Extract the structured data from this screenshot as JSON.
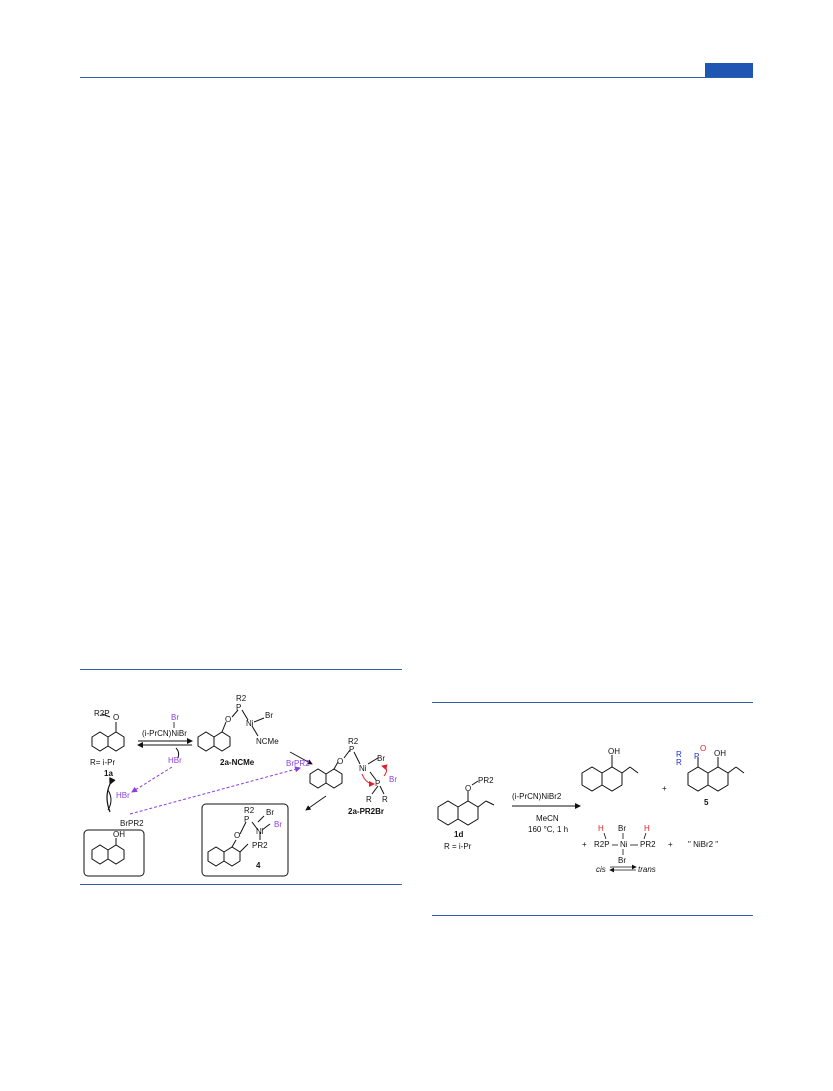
{
  "header": {
    "accent_color": "#1f55b3"
  },
  "scheme_left": {
    "compound_1a": {
      "substituent": "R2P",
      "heteroatom": "O",
      "label": "1a",
      "r_def": "R= i-Pr"
    },
    "reagent": {
      "line1": "Br",
      "line2": "(i-PrCN)NiBr"
    },
    "hbr_top": "HBr",
    "hbr_bottom": "HBr",
    "brpr2_bottom": "BrPR2",
    "brpr2_top": "BrPR2",
    "naphthol": {
      "oh": "OH"
    },
    "complex_2a_ncme": {
      "label": "2a-NCMe",
      "r3": "R2",
      "p": "P",
      "o": "O",
      "ni": "Ni",
      "br": "Br",
      "ncme": "NCMe"
    },
    "complex_2a_pr2br": {
      "label": "2a-PR2Br",
      "r2": "R2",
      "p": "P",
      "o": "O",
      "ni": "Ni",
      "br": "Br",
      "p2": "P",
      "br2": "Br",
      "r_left": "R",
      "r_right": "R"
    },
    "complex_4": {
      "label": "4",
      "r2": "R2",
      "p": "P",
      "o": "O",
      "ni": "Ni",
      "br1": "Br",
      "br2": "Br",
      "pr2": "PR2"
    },
    "colors": {
      "purple": "#8b3fe0",
      "red": "#e0202a"
    }
  },
  "scheme_right": {
    "compound_1d": {
      "substituent": "PR2",
      "o": "O",
      "label": "1d",
      "r_def": "R = i-Pr"
    },
    "conditions": {
      "reagent": "(i-PrCN)NiBr2",
      "solvent": "MeCN",
      "temp_time": "160 °C, 1 h"
    },
    "product_naphthol": {
      "oh": "OH"
    },
    "plus_1": "+",
    "product_5": {
      "label": "5",
      "r1": "R",
      "r2": "R",
      "p": "P",
      "o": "O",
      "oh": "OH"
    },
    "byproduct": {
      "plus": "+",
      "h_left": "H",
      "h_right": "H",
      "r2p": "R2P",
      "ni": "Ni",
      "pr2": "PR2",
      "br_top": "Br",
      "br_bottom": "Br",
      "cis": "cis",
      "trans": "trans"
    },
    "nibr2": {
      "plus": "+",
      "text": "\" NiBr2 \""
    },
    "colors": {
      "blue": "#1d2fd6",
      "red": "#e0202a"
    }
  }
}
